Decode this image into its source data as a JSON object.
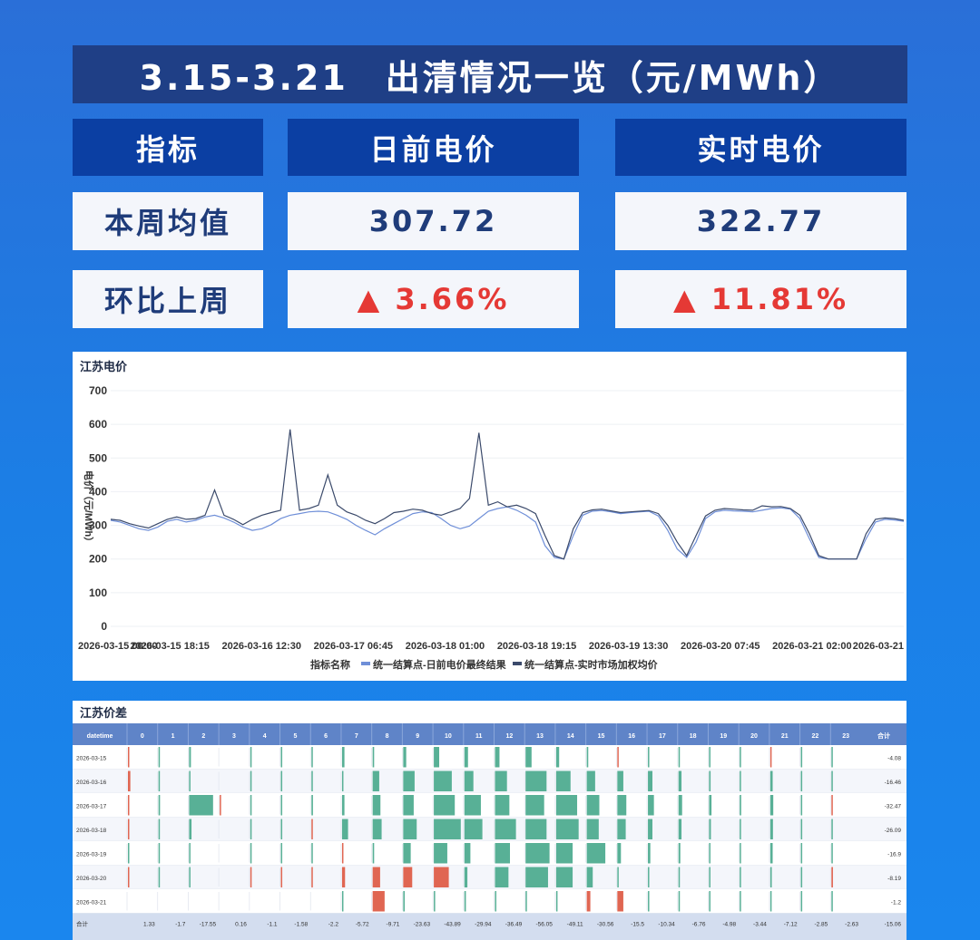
{
  "title": "3.15-3.21　出清情况一览（元/MWh）",
  "summary": {
    "headers": [
      "指标",
      "日前电价",
      "实时电价"
    ],
    "rows": [
      {
        "label": "本周均值",
        "day_ahead": "307.72",
        "realtime": "322.77"
      },
      {
        "label": "环比上周",
        "day_ahead": "▲ 3.66%",
        "realtime": "▲ 11.81%"
      }
    ]
  },
  "colors": {
    "accent_up": "#e53935",
    "header_bg": "#0b3fa3",
    "day_ahead_line": "#6f8fd8",
    "realtime_line": "#3b4a6b",
    "pos_bar": "#e06652",
    "neg_bar": "#58b096"
  },
  "chart_data": [
    {
      "type": "line",
      "title": "江苏电价",
      "ylabel": "电价（元/MWh）",
      "ylim": [
        0,
        700
      ],
      "yticks": [
        0,
        100,
        200,
        300,
        400,
        500,
        600,
        700
      ],
      "xticks": [
        "2026-03-15 00:00",
        "2026-03-15 18:15",
        "2026-03-16 12:30",
        "2026-03-17 06:45",
        "2026-03-18 01:00",
        "2026-03-18 19:15",
        "2026-03-19 13:30",
        "2026-03-20 07:45",
        "2026-03-21 02:00",
        "2026-03-21"
      ],
      "legend_title": "指标名称",
      "legend_position": "bottom",
      "x": [
        0,
        2,
        4,
        6,
        8,
        10,
        12,
        14,
        16,
        18,
        20,
        22,
        24,
        26,
        28,
        30,
        32,
        34,
        36,
        38,
        40,
        42,
        44,
        46,
        48,
        50,
        52,
        54,
        56,
        58,
        60,
        62,
        64,
        66,
        68,
        70,
        72,
        74,
        76,
        78,
        80,
        82,
        84,
        86,
        88,
        90,
        92,
        94,
        96,
        98,
        100,
        102,
        104,
        106,
        108,
        110,
        112,
        114,
        116,
        118,
        120,
        122,
        124,
        126,
        128,
        130,
        132,
        134,
        136,
        138,
        140,
        142,
        144,
        146,
        148,
        150,
        152,
        154,
        156,
        158,
        160,
        162,
        164,
        166,
        168
      ],
      "series": [
        {
          "name": "统一结算点-日前电价最终结果",
          "values": [
            315,
            310,
            300,
            290,
            285,
            295,
            312,
            318,
            310,
            315,
            325,
            330,
            322,
            310,
            295,
            285,
            290,
            302,
            320,
            330,
            335,
            340,
            342,
            340,
            330,
            318,
            300,
            285,
            272,
            290,
            305,
            320,
            335,
            340,
            338,
            320,
            300,
            290,
            298,
            320,
            342,
            350,
            355,
            345,
            330,
            310,
            240,
            205,
            200,
            270,
            330,
            342,
            344,
            340,
            335,
            338,
            340,
            342,
            328,
            285,
            230,
            205,
            250,
            320,
            340,
            345,
            343,
            342,
            340,
            345,
            350,
            352,
            348,
            320,
            260,
            205,
            200,
            200,
            200,
            200,
            260,
            310,
            318,
            316,
            312
          ]
        },
        {
          "name": "统一结算点-实时市场加权均价",
          "values": [
            318,
            315,
            305,
            298,
            292,
            305,
            318,
            325,
            318,
            320,
            330,
            405,
            330,
            318,
            302,
            318,
            330,
            338,
            345,
            585,
            345,
            350,
            360,
            450,
            360,
            340,
            330,
            315,
            305,
            320,
            338,
            342,
            348,
            345,
            335,
            330,
            340,
            350,
            380,
            575,
            360,
            370,
            355,
            360,
            350,
            335,
            270,
            210,
            200,
            290,
            338,
            346,
            348,
            343,
            338,
            340,
            342,
            344,
            335,
            300,
            250,
            210,
            270,
            328,
            345,
            350,
            348,
            346,
            345,
            358,
            355,
            356,
            350,
            330,
            275,
            210,
            200,
            200,
            200,
            200,
            275,
            318,
            322,
            320,
            315
          ]
        }
      ]
    },
    {
      "type": "heatmap",
      "title": "江苏价差",
      "corner": "datetime",
      "total_label": "合计",
      "hours": [
        "0",
        "1",
        "2",
        "3",
        "4",
        "5",
        "6",
        "7",
        "8",
        "9",
        "10",
        "11",
        "12",
        "13",
        "14",
        "15",
        "16",
        "17",
        "18",
        "19",
        "20",
        "21",
        "22",
        "23"
      ],
      "dates": [
        "2026-03-15",
        "2026-03-16",
        "2026-03-17",
        "2026-03-18",
        "2026-03-19",
        "2026-03-20",
        "2026-03-21"
      ],
      "row_totals": [
        "-4.08",
        "-16.46",
        "-32.47",
        "-26.09",
        "-16.9",
        "-8.19",
        "-1.2"
      ],
      "col_totals": [
        "1.33",
        "-1.7",
        "-17.55",
        "0.16",
        "-1.1",
        "-1.58",
        "-2.2",
        "-5.72",
        "-9.71",
        "-23.63",
        "-43.89",
        "-29.94",
        "-36.49",
        "-56.05",
        "-49.11",
        "-30.56",
        "-15.5",
        "-10.34",
        "-6.76",
        "-4.98",
        "-3.44",
        "-7.12",
        "-2.85",
        "-2.63"
      ],
      "grand_total": "-15.06",
      "values": [
        [
          2,
          -3,
          -6,
          0,
          -2,
          -3,
          -3,
          -8,
          -5,
          -10,
          -18,
          -12,
          -15,
          -20,
          -10,
          -5,
          3,
          -4,
          -2,
          -3,
          -1,
          4,
          -2,
          -1
        ],
        [
          8,
          -2,
          -3,
          0,
          -1,
          -1,
          -2,
          -3,
          -22,
          -38,
          -60,
          -30,
          -40,
          -70,
          -48,
          -28,
          -20,
          -15,
          -10,
          -5,
          -4,
          -8,
          -3,
          -2
        ],
        [
          1,
          -5,
          -80,
          2,
          -2,
          -3,
          -5,
          -8,
          -26,
          -35,
          -70,
          -55,
          -48,
          -62,
          -70,
          -42,
          -30,
          -20,
          -12,
          -8,
          -5,
          -10,
          -4,
          3
        ],
        [
          3,
          -2,
          -8,
          0,
          -2,
          -2,
          4,
          -20,
          -30,
          -45,
          -90,
          -60,
          -70,
          -70,
          -75,
          -40,
          -28,
          -15,
          -10,
          -6,
          -4,
          -9,
          -3,
          -2
        ],
        [
          -2,
          -1,
          -3,
          0,
          -1,
          -1,
          -2,
          3,
          -5,
          -25,
          -45,
          -20,
          -50,
          -80,
          -55,
          -62,
          -12,
          -8,
          -6,
          -4,
          -3,
          -8,
          -3,
          -2
        ],
        [
          1,
          -1,
          -2,
          0,
          1,
          2,
          3,
          10,
          25,
          30,
          50,
          -10,
          -45,
          -75,
          -55,
          -20,
          -4,
          -3,
          -3,
          -3,
          -2,
          -5,
          -2,
          5
        ],
        [
          0,
          0,
          0,
          0,
          0,
          0,
          0,
          -2,
          40,
          -5,
          -3,
          -5,
          -3,
          -2,
          -2,
          12,
          20,
          -2,
          -2,
          -2,
          -2,
          -2,
          -2,
          -2
        ]
      ]
    }
  ]
}
